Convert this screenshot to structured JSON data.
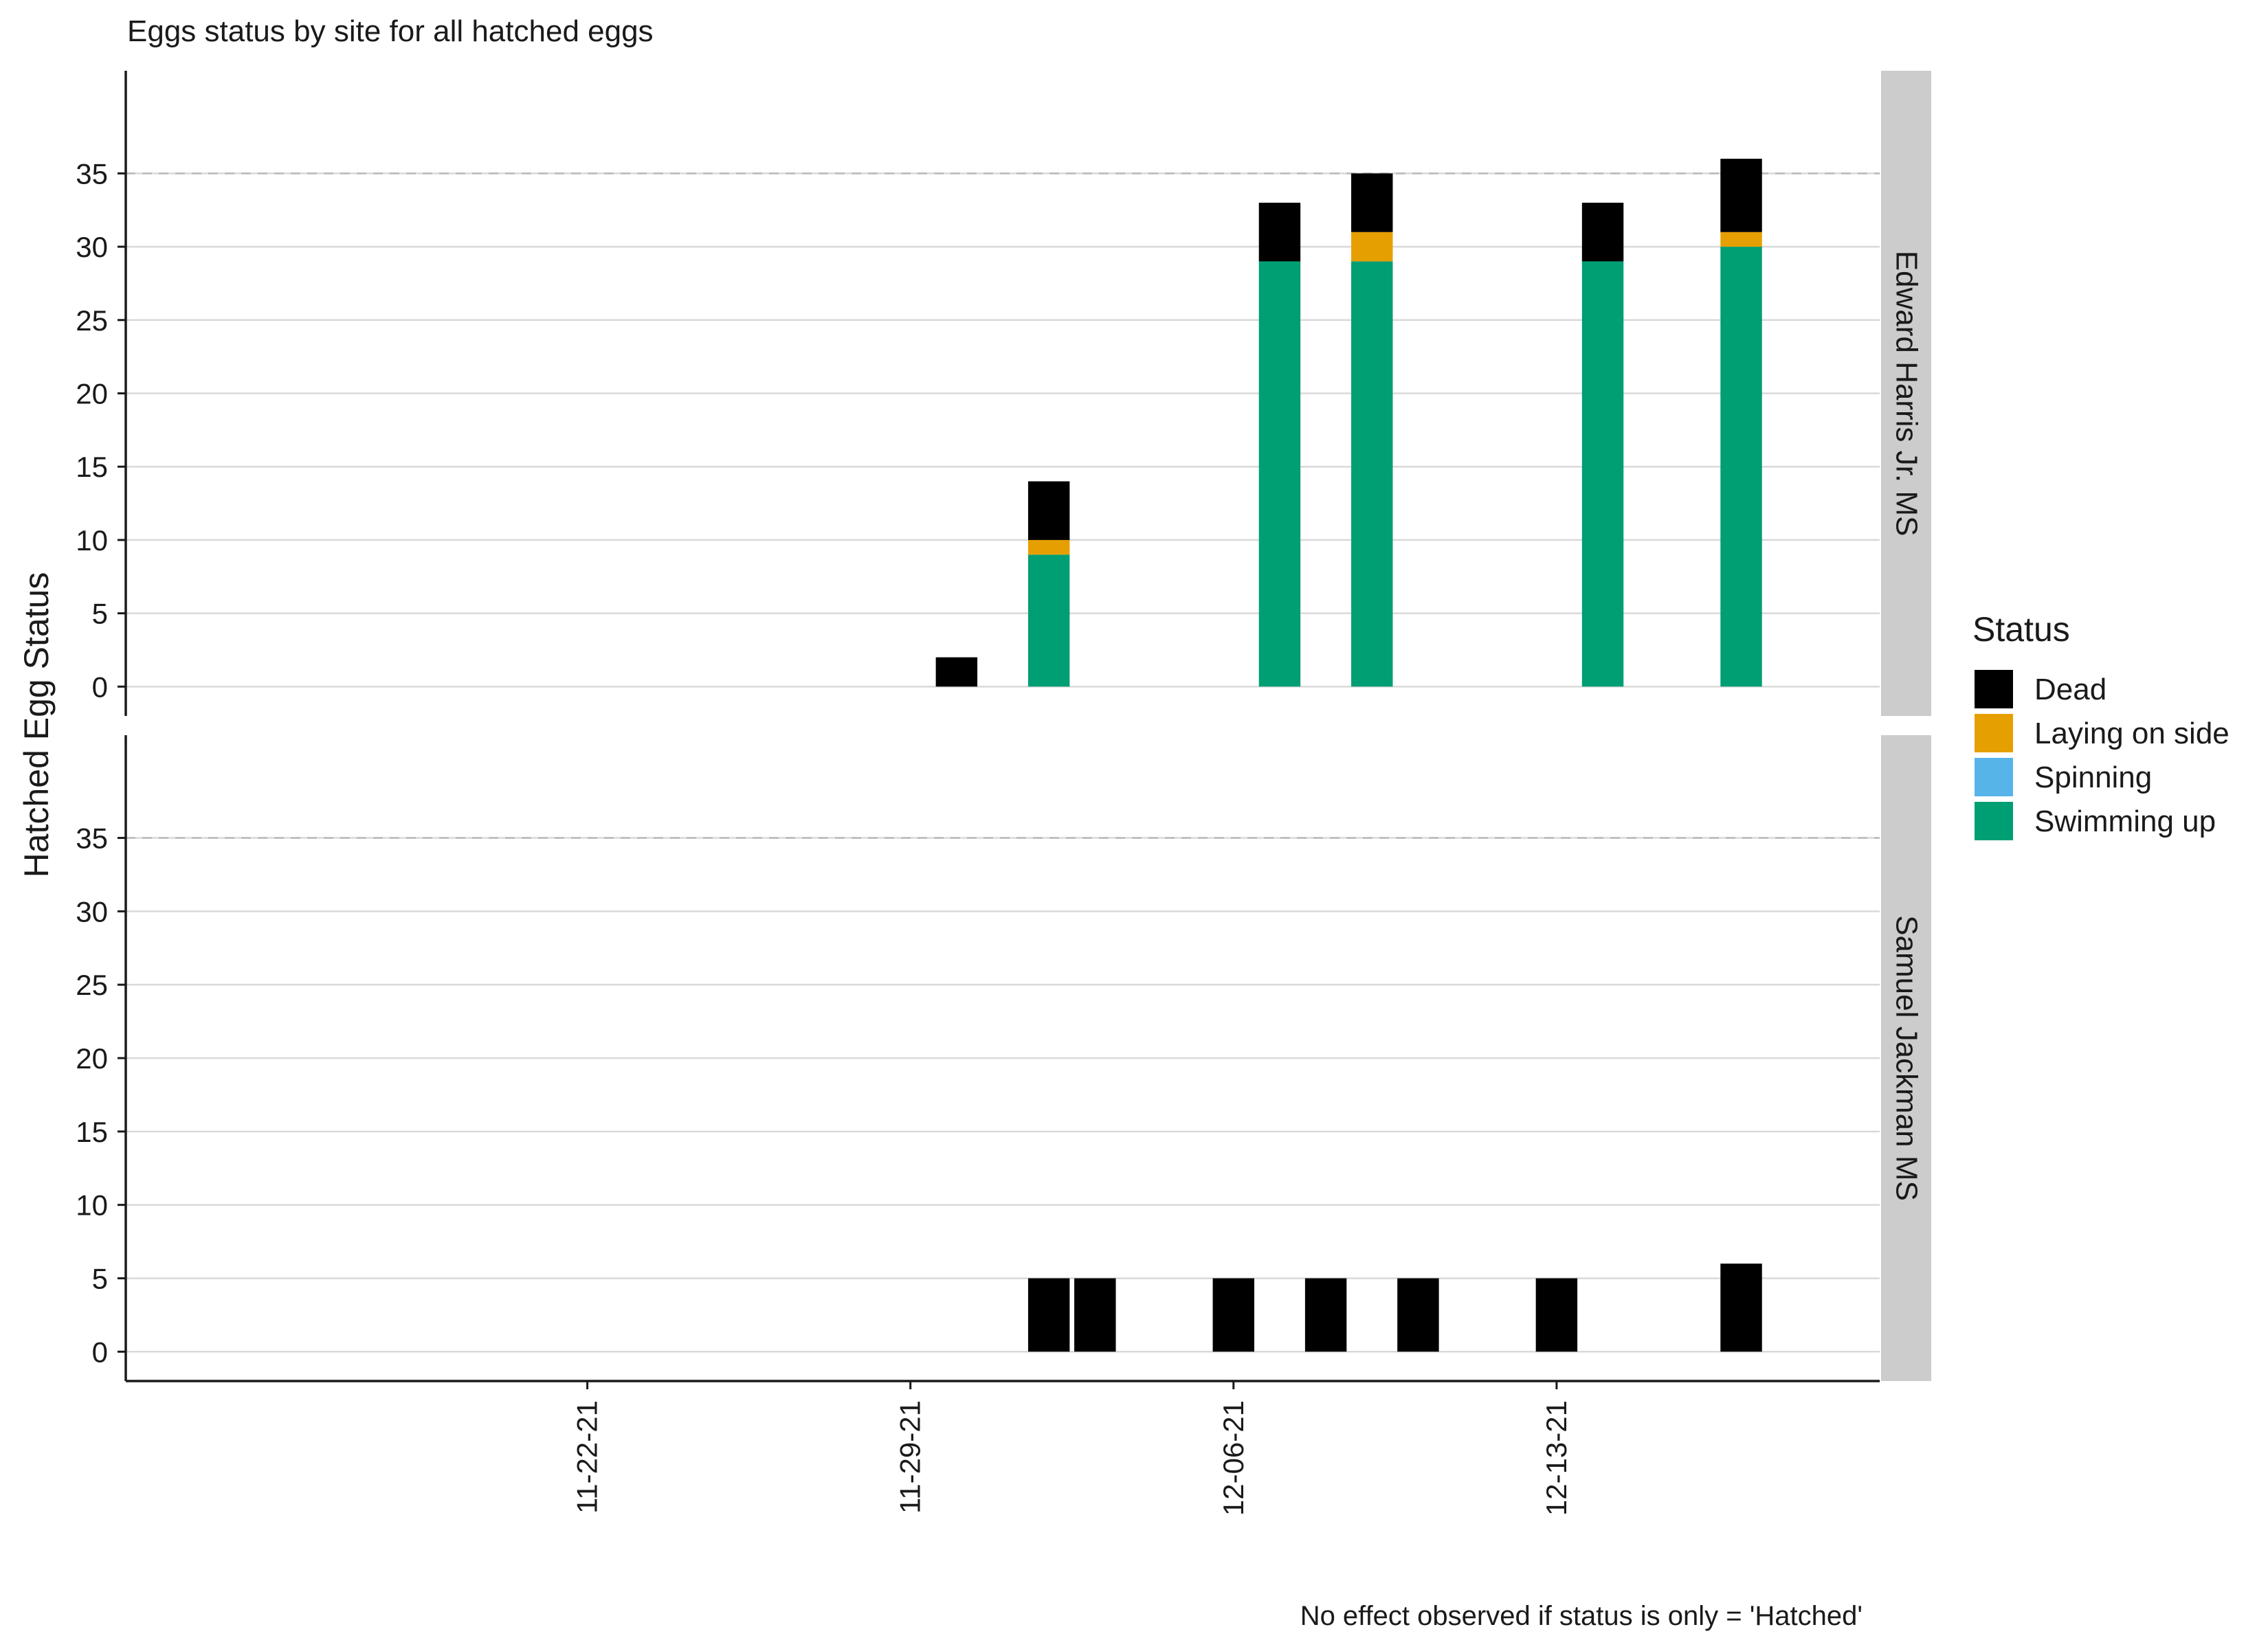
{
  "chart_data": {
    "type": "bar",
    "stacked": true,
    "title": "Eggs status by site for all hatched eggs",
    "ylabel": "Hatched Egg Status",
    "xlabel": "",
    "caption": "No effect observed if status is only = 'Hatched'",
    "ylim": [
      -2,
      42
    ],
    "yticks": [
      0,
      5,
      10,
      15,
      20,
      25,
      30,
      35
    ],
    "reference_line": 35,
    "x_axis": {
      "type": "date",
      "range": [
        "2021-11-12",
        "2021-12-20"
      ],
      "ticks": [
        {
          "date": "2021-11-22",
          "label": "11-22-21"
        },
        {
          "date": "2021-11-29",
          "label": "11-29-21"
        },
        {
          "date": "2021-12-06",
          "label": "12-06-21"
        },
        {
          "date": "2021-12-13",
          "label": "12-13-21"
        }
      ]
    },
    "legend": {
      "title": "Status",
      "position": "right",
      "items": [
        "Dead",
        "Laying on side",
        "Spinning",
        "Swimming up"
      ]
    },
    "colors": {
      "Dead": "#000000",
      "Laying on side": "#E69F00",
      "Spinning": "#56B4E9",
      "Swimming up": "#009E73"
    },
    "stack_order": [
      "Swimming up",
      "Spinning",
      "Laying on side",
      "Dead"
    ],
    "grid": true,
    "facets": [
      {
        "label": "Edward Harris Jr. MS",
        "bars": [
          {
            "date": "2021-11-30",
            "Swimming up": 0,
            "Spinning": 0,
            "Laying on side": 0,
            "Dead": 2
          },
          {
            "date": "2021-12-02",
            "Swimming up": 9,
            "Spinning": 0,
            "Laying on side": 1,
            "Dead": 4
          },
          {
            "date": "2021-12-07",
            "Swimming up": 29,
            "Spinning": 0,
            "Laying on side": 0,
            "Dead": 4
          },
          {
            "date": "2021-12-09",
            "Swimming up": 29,
            "Spinning": 0,
            "Laying on side": 2,
            "Dead": 4
          },
          {
            "date": "2021-12-14",
            "Swimming up": 29,
            "Spinning": 0,
            "Laying on side": 0,
            "Dead": 4
          },
          {
            "date": "2021-12-17",
            "Swimming up": 30,
            "Spinning": 0,
            "Laying on side": 1,
            "Dead": 5
          }
        ]
      },
      {
        "label": "Samuel Jackman MS",
        "bars": [
          {
            "date": "2021-12-02",
            "Swimming up": 0,
            "Spinning": 0,
            "Laying on side": 0,
            "Dead": 5
          },
          {
            "date": "2021-12-03",
            "Swimming up": 0,
            "Spinning": 0,
            "Laying on side": 0,
            "Dead": 5
          },
          {
            "date": "2021-12-06",
            "Swimming up": 0,
            "Spinning": 0,
            "Laying on side": 0,
            "Dead": 5
          },
          {
            "date": "2021-12-08",
            "Swimming up": 0,
            "Spinning": 0,
            "Laying on side": 0,
            "Dead": 5
          },
          {
            "date": "2021-12-10",
            "Swimming up": 0,
            "Spinning": 0,
            "Laying on side": 0,
            "Dead": 5
          },
          {
            "date": "2021-12-13",
            "Swimming up": 0,
            "Spinning": 0,
            "Laying on side": 0,
            "Dead": 5
          },
          {
            "date": "2021-12-17",
            "Swimming up": 0,
            "Spinning": 0,
            "Laying on side": 0,
            "Dead": 6
          }
        ]
      }
    ]
  }
}
